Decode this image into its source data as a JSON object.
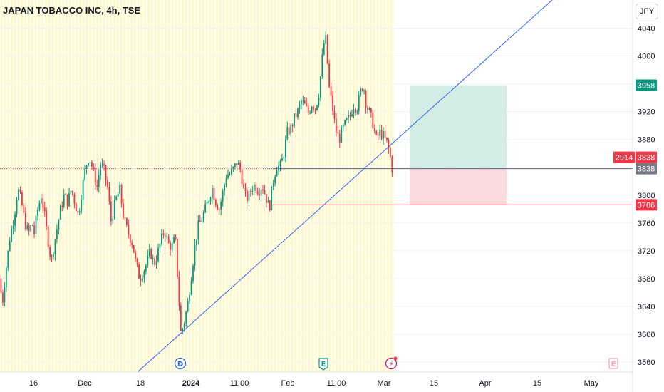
{
  "header": {
    "symbol_title": "JAPAN TOBACCO INC, 4h, TSE"
  },
  "toolbar": {
    "currency_label": "JPY"
  },
  "colors": {
    "up": "#089981",
    "down": "#f23645",
    "session_bg": "#fffde7",
    "session_line": "#fff3b0",
    "trend_line": "#2962ff",
    "profit_zone": "#d3ece6",
    "loss_zone": "#fbdadd",
    "stop_line": "#f7525f",
    "entry_line": "#5b6d8a"
  },
  "chart_data": {
    "type": "candlestick",
    "ylim": [
      3545,
      4065
    ],
    "y_ticks": [
      3560,
      3600,
      3640,
      3680,
      3720,
      3760,
      3800,
      3840,
      3880,
      3920,
      3960,
      4000,
      4040
    ],
    "x_ticks": [
      {
        "label": "16",
        "bold": false
      },
      {
        "label": "Dec",
        "bold": false
      },
      {
        "label": "18",
        "bold": false
      },
      {
        "label": "2024",
        "bold": true
      },
      {
        "label": "11:00",
        "bold": false
      },
      {
        "label": "Feb",
        "bold": false
      },
      {
        "label": "11:00",
        "bold": false
      },
      {
        "label": "Mar",
        "bold": false
      },
      {
        "label": "15",
        "bold": false
      },
      {
        "label": "Apr",
        "bold": false
      },
      {
        "label": "15",
        "bold": false
      },
      {
        "label": "May",
        "bold": false
      }
    ],
    "path": [
      [
        0,
        3680
      ],
      [
        3,
        3640
      ],
      [
        8,
        3690
      ],
      [
        14,
        3740
      ],
      [
        20,
        3770
      ],
      [
        25,
        3810
      ],
      [
        30,
        3790
      ],
      [
        35,
        3760
      ],
      [
        40,
        3745
      ],
      [
        45,
        3760
      ],
      [
        48,
        3745
      ],
      [
        52,
        3775
      ],
      [
        58,
        3800
      ],
      [
        62,
        3775
      ],
      [
        68,
        3730
      ],
      [
        72,
        3705
      ],
      [
        78,
        3740
      ],
      [
        84,
        3775
      ],
      [
        90,
        3800
      ],
      [
        95,
        3790
      ],
      [
        100,
        3808
      ],
      [
        105,
        3790
      ],
      [
        110,
        3770
      ],
      [
        116,
        3815
      ],
      [
        120,
        3840
      ],
      [
        125,
        3856
      ],
      [
        130,
        3838
      ],
      [
        136,
        3810
      ],
      [
        141,
        3845
      ],
      [
        146,
        3835
      ],
      [
        151,
        3810
      ],
      [
        156,
        3762
      ],
      [
        162,
        3792
      ],
      [
        168,
        3808
      ],
      [
        174,
        3765
      ],
      [
        180,
        3745
      ],
      [
        186,
        3730
      ],
      [
        191,
        3700
      ],
      [
        196,
        3680
      ],
      [
        201,
        3690
      ],
      [
        206,
        3702
      ],
      [
        211,
        3720
      ],
      [
        216,
        3700
      ],
      [
        221,
        3715
      ],
      [
        226,
        3735
      ],
      [
        231,
        3750
      ],
      [
        236,
        3730
      ],
      [
        241,
        3725
      ],
      [
        246,
        3740
      ],
      [
        251,
        3650
      ],
      [
        254,
        3600
      ],
      [
        258,
        3615
      ],
      [
        263,
        3640
      ],
      [
        268,
        3680
      ],
      [
        273,
        3722
      ],
      [
        278,
        3755
      ],
      [
        283,
        3765
      ],
      [
        288,
        3780
      ],
      [
        293,
        3795
      ],
      [
        298,
        3810
      ],
      [
        303,
        3790
      ],
      [
        308,
        3780
      ],
      [
        313,
        3805
      ],
      [
        318,
        3830
      ],
      [
        323,
        3830
      ],
      [
        328,
        3838
      ],
      [
        333,
        3848
      ],
      [
        338,
        3835
      ],
      [
        343,
        3800
      ],
      [
        348,
        3795
      ],
      [
        353,
        3810
      ],
      [
        358,
        3815
      ],
      [
        363,
        3805
      ],
      [
        368,
        3815
      ],
      [
        373,
        3798
      ],
      [
        378,
        3780
      ],
      [
        383,
        3818
      ],
      [
        388,
        3842
      ],
      [
        393,
        3840
      ],
      [
        398,
        3858
      ],
      [
        403,
        3890
      ],
      [
        408,
        3895
      ],
      [
        413,
        3910
      ],
      [
        418,
        3920
      ],
      [
        423,
        3935
      ],
      [
        428,
        3928
      ],
      [
        433,
        3918
      ],
      [
        438,
        3932
      ],
      [
        443,
        3924
      ],
      [
        448,
        3950
      ],
      [
        452,
        3994
      ],
      [
        455,
        4020
      ],
      [
        458,
        4025
      ],
      [
        461,
        3960
      ],
      [
        466,
        3930
      ],
      [
        471,
        3895
      ],
      [
        476,
        3880
      ],
      [
        481,
        3895
      ],
      [
        486,
        3905
      ],
      [
        491,
        3912
      ],
      [
        496,
        3930
      ],
      [
        501,
        3925
      ],
      [
        506,
        3948
      ],
      [
        510,
        3960
      ],
      [
        514,
        3930
      ],
      [
        518,
        3920
      ],
      [
        523,
        3905
      ],
      [
        528,
        3880
      ],
      [
        533,
        3890
      ],
      [
        538,
        3885
      ],
      [
        543,
        3875
      ],
      [
        547,
        3860
      ],
      [
        550,
        3838
      ]
    ],
    "last_price": 3838,
    "last_bar_countdown": "2914",
    "annotations": {
      "take_profit": 3958,
      "stop": 3786,
      "entry": 3838
    },
    "events": [
      "D",
      "E",
      "⚡",
      "E"
    ]
  }
}
